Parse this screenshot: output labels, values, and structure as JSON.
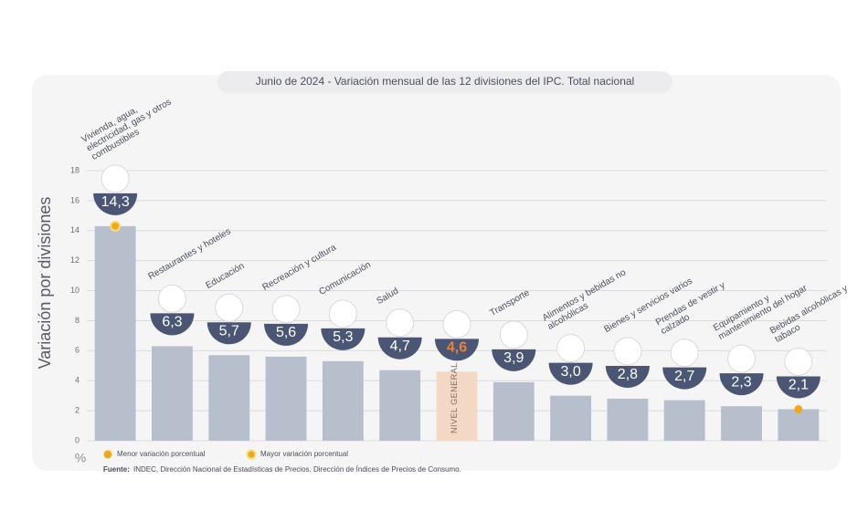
{
  "chart_data": {
    "type": "bar",
    "title": "Junio de 2024 - Variación mensual de las 12 divisiones del IPC. Total nacional",
    "y_label": "Variación por divisiones",
    "y_unit": "%",
    "categories": [
      "Vivienda, agua, electricidad, gas y otros combustibles",
      "Restaurantes y hoteles",
      "Educación",
      "Recreación y cultura",
      "Comunicación",
      "Salud",
      "NIVEL GENERAL",
      "Transporte",
      "Alimentos y bebidas no alcohólicas",
      "Bienes y servicios varios",
      "Prendas de vestir y calzado",
      "Equipamiento y mantenimiento del hogar",
      "Bebidas alcohólicas y tabaco"
    ],
    "values": [
      14.3,
      6.3,
      5.7,
      5.6,
      5.3,
      4.7,
      4.6,
      3.9,
      3.0,
      2.8,
      2.7,
      2.3,
      2.1
    ],
    "value_labels": [
      "14,3",
      "6,3",
      "5,7",
      "5,6",
      "5,3",
      "4,7",
      "4,6",
      "3,9",
      "3,0",
      "2,8",
      "2,7",
      "2,3",
      "2,1"
    ],
    "color": "#b8bfcc",
    "highlight_index": 6,
    "highlight_color": "#f4d8c6",
    "badge_color": "#4b5574",
    "highlight_text_color": "#e8823f",
    "ylim": [
      0,
      18
    ],
    "yticks": [
      0,
      2,
      4,
      6,
      8,
      10,
      12,
      14,
      16,
      18
    ],
    "grid": true,
    "legend": [
      {
        "label": "Menor variación porcentual",
        "color": "#f0a91f"
      },
      {
        "label": "Mayor variación porcentual",
        "color": "#f0a91f"
      }
    ],
    "source_label": "Fuente:",
    "source": "INDEC, Dirección Nacional de Estadísticas de Precios. Dirección de Índices de Precios de Consumo."
  }
}
